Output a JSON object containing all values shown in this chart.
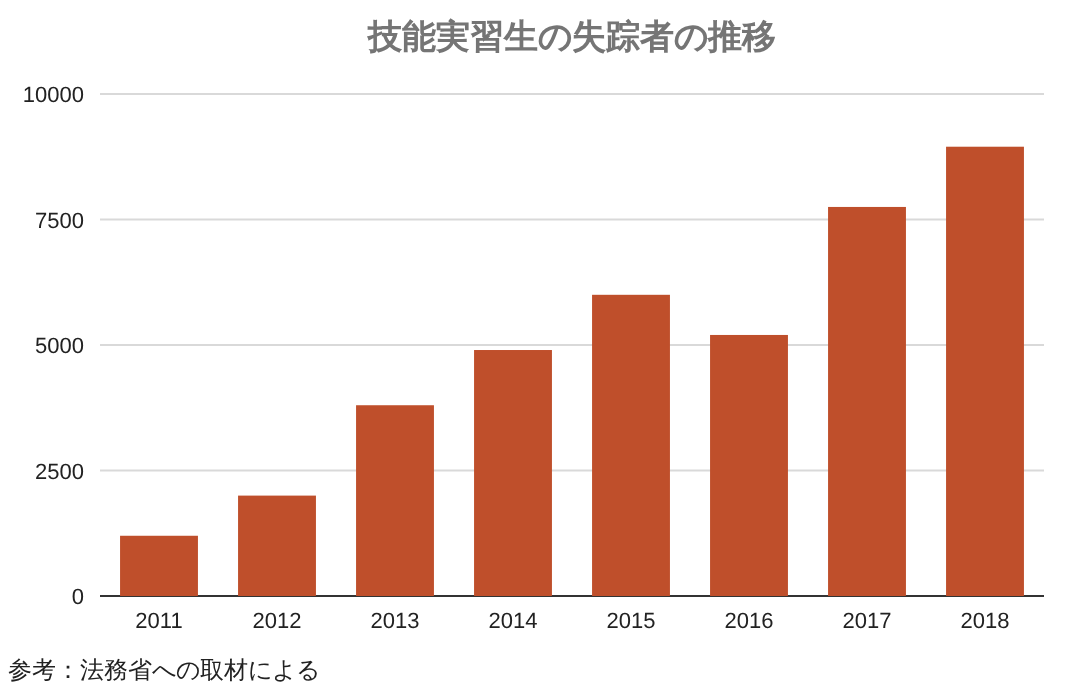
{
  "chart_data": {
    "type": "bar",
    "title": "技能実習生の失踪者の推移",
    "categories": [
      "2011",
      "2012",
      "2013",
      "2014",
      "2015",
      "2016",
      "2017",
      "2018"
    ],
    "values": [
      1200,
      2000,
      3800,
      4900,
      6000,
      5200,
      7750,
      8950
    ],
    "color": "#bf4f2b",
    "ylim": [
      0,
      10000
    ],
    "yticks": [
      0,
      2500,
      5000,
      7500,
      10000
    ],
    "grid": "y",
    "annotations": [
      "参考：法務省への取材による"
    ]
  }
}
